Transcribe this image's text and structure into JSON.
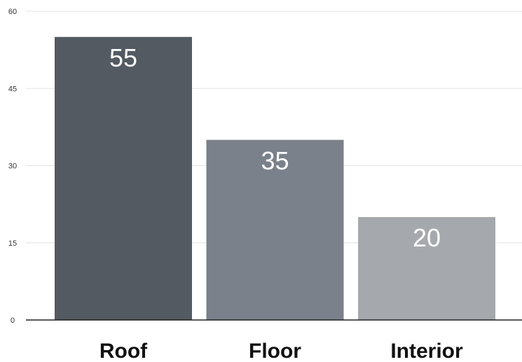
{
  "chart_data": {
    "type": "bar",
    "categories": [
      "Roof",
      "Floor",
      "Interior"
    ],
    "values": [
      55,
      35,
      20
    ],
    "title": "",
    "xlabel": "",
    "ylabel": "",
    "ylim": [
      0,
      60
    ],
    "yticks": [
      0,
      15,
      30,
      45,
      60
    ],
    "grid": true,
    "legend": "none",
    "colors": [
      "#535a61",
      "#7a818a",
      "#a5a9ad"
    ],
    "data_labels": [
      "55",
      "35",
      "20"
    ]
  }
}
